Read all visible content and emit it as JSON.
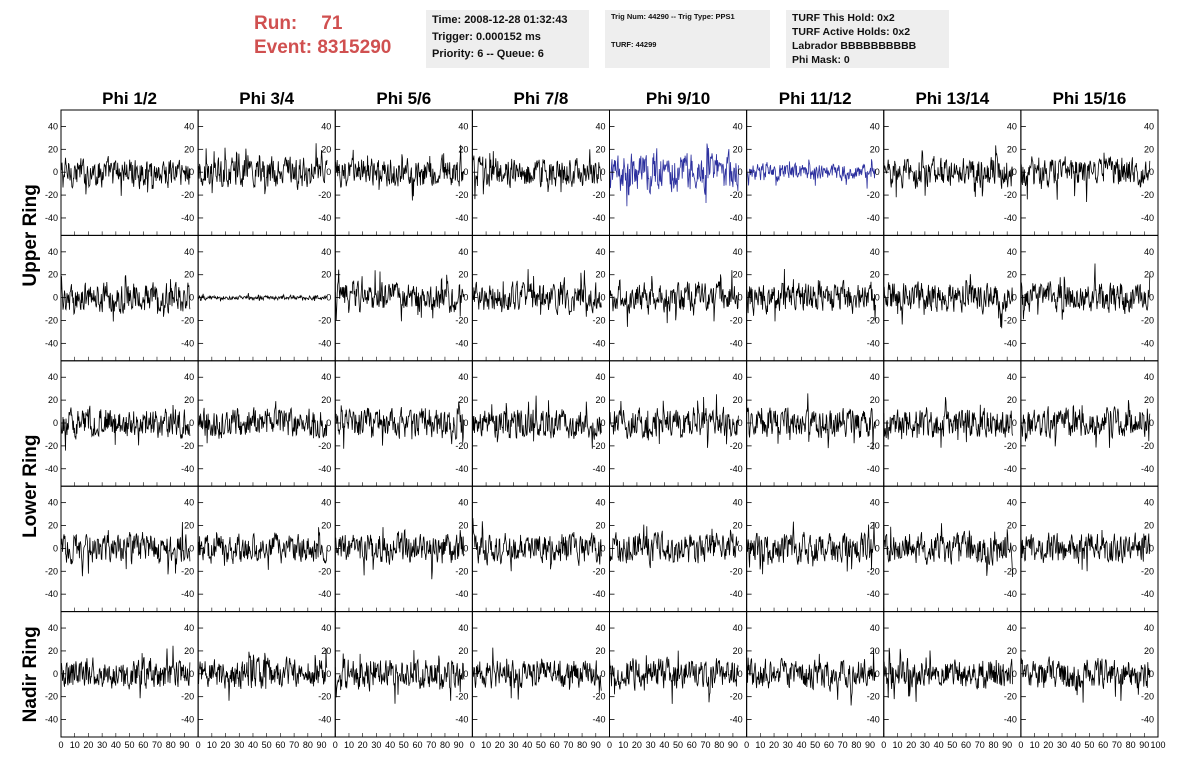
{
  "header": {
    "run_label": "Run:",
    "run_value": "71",
    "event_label": "Event:",
    "event_value": "8315290",
    "colors": {
      "run_text": "#d05050",
      "box_bg": "#eeeeee"
    }
  },
  "info_time": {
    "time": "Time: 2008-12-28 01:32:43",
    "trigger": "Trigger: 0.000152 ms",
    "priority": "Priority: 6 -- Queue: 6"
  },
  "info_trig": {
    "trig": "Trig Num: 44290 -- Trig Type: PPS1",
    "turf": "TURF: 44299"
  },
  "info_turf": {
    "this_hold": "TURF This Hold: 0x2",
    "active_holds": "TURF Active Holds: 0x2",
    "labrador": "Labrador BBBBBBBBBB",
    "phi_mask": "Phi Mask: 0"
  },
  "chart_data": {
    "type": "line",
    "columns": [
      "Phi 1/2",
      "Phi 3/4",
      "Phi 5/6",
      "Phi 7/8",
      "Phi 9/10",
      "Phi 11/12",
      "Phi 13/14",
      "Phi 15/16"
    ],
    "rows": [
      "Upper Ring",
      "Upper Ring",
      "Lower Ring",
      "Lower Ring",
      "Nadir Ring"
    ],
    "row_labels": [
      {
        "label": "Upper Ring",
        "span_rows": [
          0,
          1
        ]
      },
      {
        "label": "Lower Ring",
        "span_rows": [
          2,
          3
        ]
      },
      {
        "label": "Nadir Ring",
        "span_rows": [
          4
        ]
      }
    ],
    "xlim": [
      0,
      100
    ],
    "ylim": [
      -50,
      50
    ],
    "ytick_values": [
      -40,
      -20,
      0,
      20,
      40
    ],
    "xtick_values": [
      0,
      10,
      20,
      30,
      40,
      50,
      60,
      70,
      80,
      90,
      100
    ],
    "samples_per_trace": 260,
    "trace_x_max": 94,
    "default_amplitude": 17,
    "amplitude_overrides": [
      {
        "row": 0,
        "col": 4,
        "amplitude": 22
      },
      {
        "row": 0,
        "col": 5,
        "amplitude": 9
      },
      {
        "row": 1,
        "col": 1,
        "amplitude": 2.5
      }
    ],
    "highlighted_panels": [
      {
        "row": 0,
        "col": 4
      },
      {
        "row": 0,
        "col": 5
      }
    ],
    "trace_color": "#000000",
    "highlight_color": "#2b2f9e"
  }
}
